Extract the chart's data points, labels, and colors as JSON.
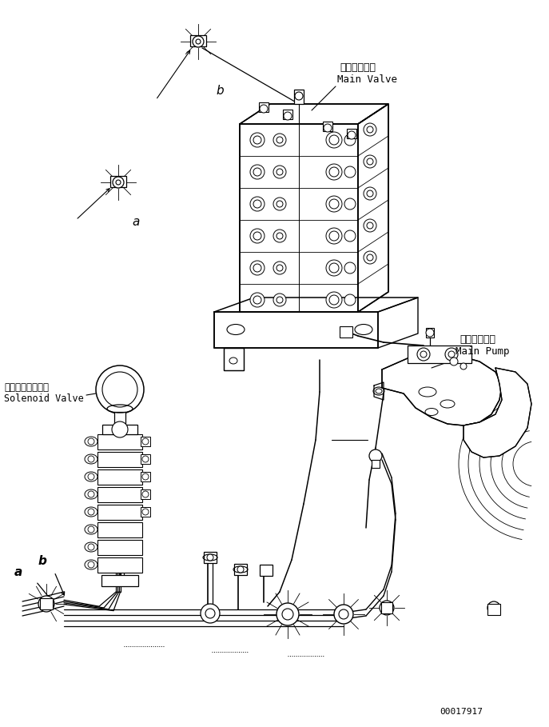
{
  "background_color": "#ffffff",
  "line_color": "#000000",
  "text_color": "#000000",
  "part_number": "00017917",
  "label_main_valve_ja": "メインバルブ",
  "label_main_valve_en": "Main Valve",
  "label_main_pump_ja": "メインポンプ",
  "label_main_pump_en": "Main Pump",
  "label_solenoid_ja": "ソレノイドバルブ",
  "label_solenoid_en": "Solenoid Valve",
  "fig_width": 6.87,
  "fig_height": 9.09,
  "dpi": 100
}
